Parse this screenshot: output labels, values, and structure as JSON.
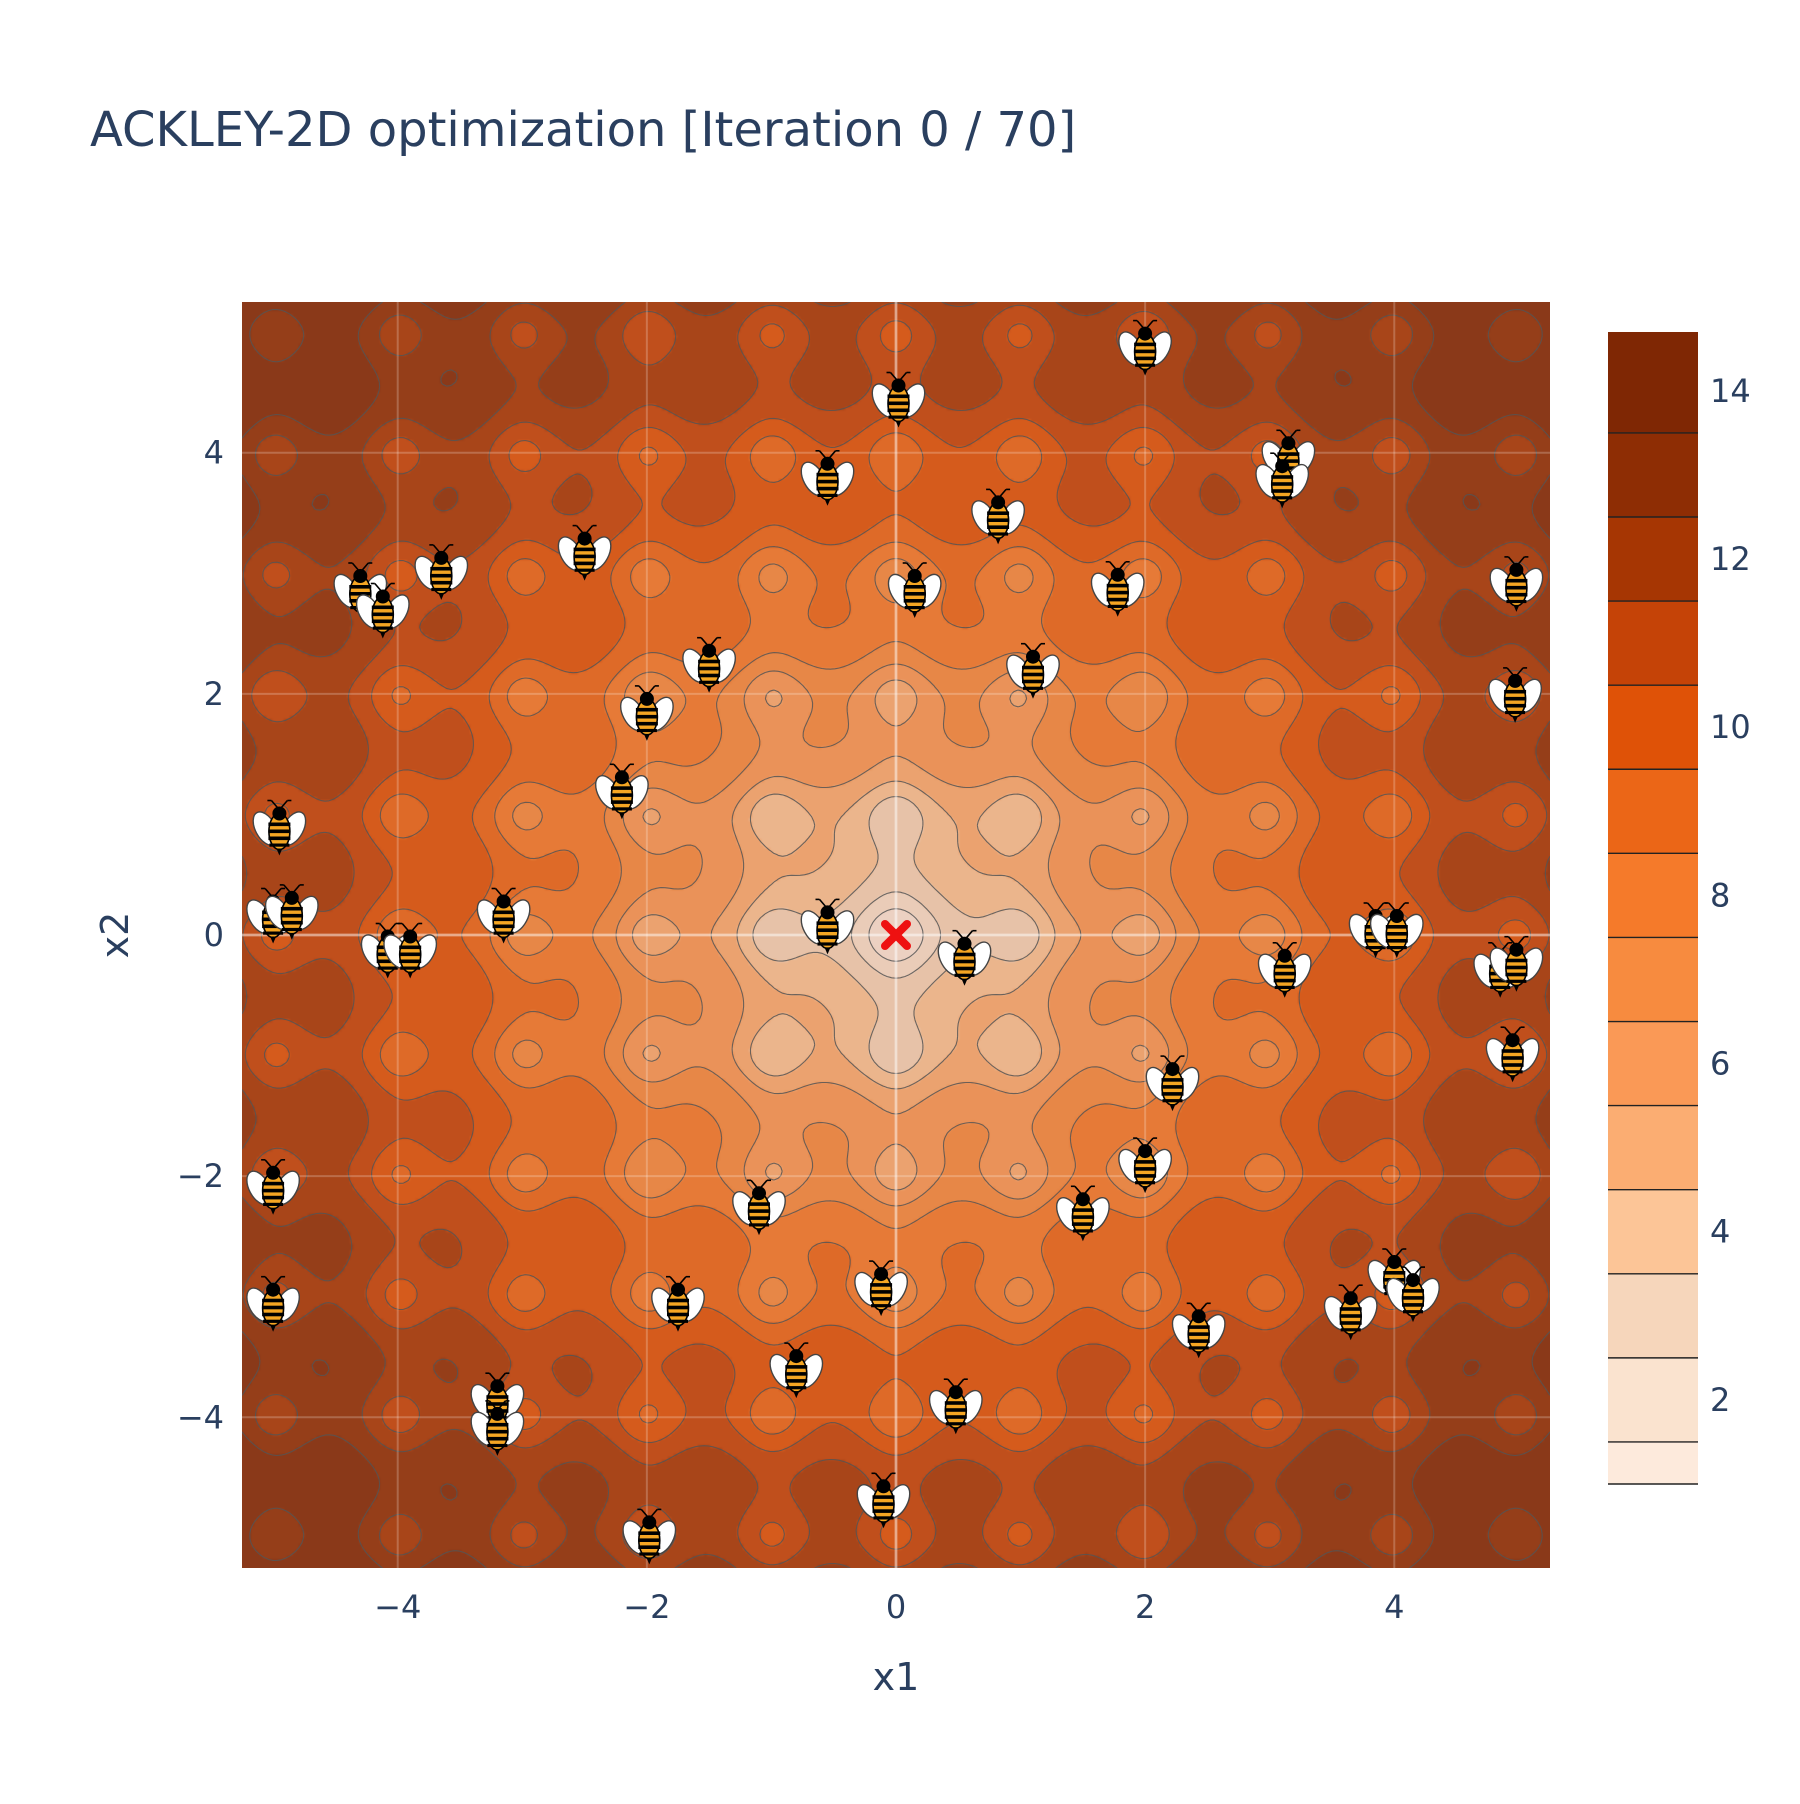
{
  "chart_data": {
    "type": "contour",
    "title": "ACKLEY-2D optimization [Iteration 0 / 70]",
    "function": "ackley",
    "xlabel": "x1",
    "ylabel": "x2",
    "xlim": [
      -5.25,
      5.25
    ],
    "ylim": [
      -5.25,
      5.25
    ],
    "x_ticks": [
      -4,
      -2,
      0,
      2,
      4
    ],
    "y_ticks": [
      -4,
      -2,
      0,
      2,
      4
    ],
    "grid": true,
    "colorbar": {
      "range": [
        1,
        14.7
      ],
      "ticks": [
        2,
        4,
        6,
        8,
        10,
        12,
        14
      ],
      "levels": [
        1.5,
        2.5,
        3.5,
        4.5,
        5.5,
        6.5,
        7.5,
        8.5,
        9.5,
        10.5,
        11.5,
        12.5,
        13.5
      ],
      "colors": [
        "#fdeadc",
        "#fae3cf",
        "#f6d6bb",
        "#fcc597",
        "#fbad72",
        "#fa9956",
        "#f78b3f",
        "#f57a2a",
        "#eb6617",
        "#df5207",
        "#c54307",
        "#a63603",
        "#8e2d04",
        "#7f2704"
      ]
    },
    "best": {
      "x": 0,
      "y": 0,
      "marker": "x",
      "color": "#ee1111"
    },
    "series": [
      {
        "marker": "bee",
        "points": [
          [
            0.02,
            4.45
          ],
          [
            2.0,
            4.88
          ],
          [
            3.15,
            3.97
          ],
          [
            3.1,
            3.78
          ],
          [
            -0.55,
            3.8
          ],
          [
            0.82,
            3.48
          ],
          [
            -2.5,
            3.18
          ],
          [
            -3.65,
            3.02
          ],
          [
            -4.3,
            2.87
          ],
          [
            -4.12,
            2.7
          ],
          [
            0.15,
            2.87
          ],
          [
            1.78,
            2.88
          ],
          [
            4.98,
            2.92
          ],
          [
            -1.5,
            2.25
          ],
          [
            1.1,
            2.2
          ],
          [
            -2.0,
            1.85
          ],
          [
            4.97,
            2.0
          ],
          [
            -2.2,
            1.2
          ],
          [
            -4.95,
            0.9
          ],
          [
            -5.0,
            0.17
          ],
          [
            -4.85,
            0.2
          ],
          [
            -3.15,
            0.17
          ],
          [
            -4.08,
            -0.12
          ],
          [
            -3.9,
            -0.12
          ],
          [
            -0.55,
            0.08
          ],
          [
            0.55,
            -0.18
          ],
          [
            3.85,
            0.05
          ],
          [
            4.02,
            0.05
          ],
          [
            3.12,
            -0.28
          ],
          [
            4.85,
            -0.28
          ],
          [
            4.98,
            -0.23
          ],
          [
            4.95,
            -0.98
          ],
          [
            2.22,
            -1.22
          ],
          [
            2.0,
            -1.9
          ],
          [
            -1.1,
            -2.25
          ],
          [
            1.5,
            -2.3
          ],
          [
            -5.0,
            -2.08
          ],
          [
            -5.0,
            -3.05
          ],
          [
            -1.75,
            -3.05
          ],
          [
            -0.12,
            -2.92
          ],
          [
            3.65,
            -3.12
          ],
          [
            4.0,
            -2.82
          ],
          [
            4.15,
            -2.97
          ],
          [
            2.43,
            -3.27
          ],
          [
            -0.8,
            -3.6
          ],
          [
            0.48,
            -3.9
          ],
          [
            -3.2,
            -3.85
          ],
          [
            -3.2,
            -4.08
          ],
          [
            -0.1,
            -4.68
          ],
          [
            -1.98,
            -4.98
          ]
        ]
      }
    ]
  }
}
